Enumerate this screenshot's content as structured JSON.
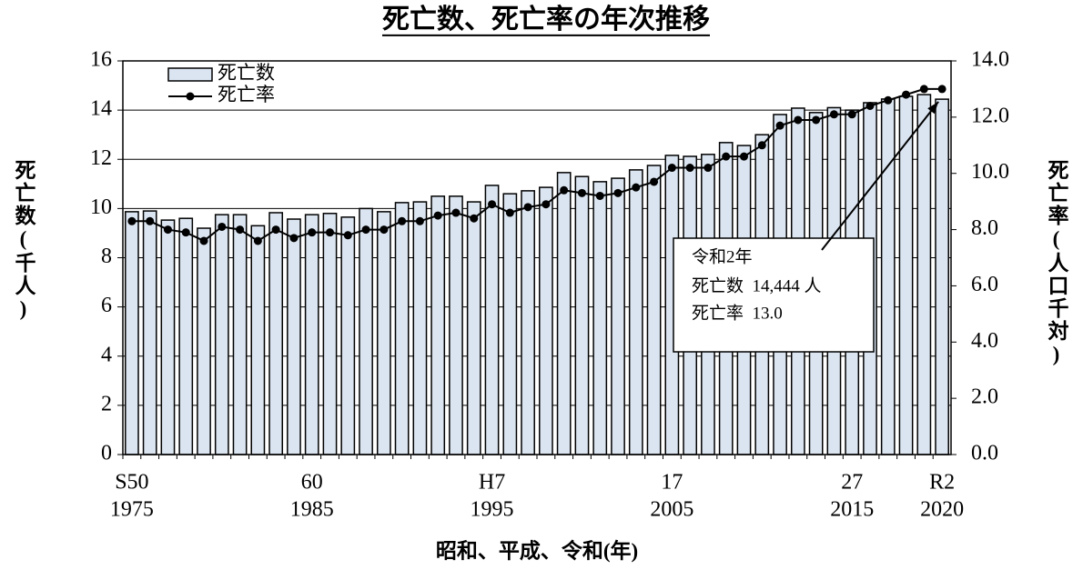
{
  "chart_data": {
    "type": "bar",
    "title": "死亡数、死亡率の年次推移",
    "x_label": "昭和、平成、令和(年)",
    "y_label": "死亡数(千人)",
    "y2_label": "死亡率(人口千対)",
    "categories": [
      "1975",
      null,
      null,
      null,
      null,
      null,
      null,
      null,
      null,
      null,
      "1985",
      null,
      null,
      null,
      null,
      null,
      null,
      null,
      null,
      null,
      "1995",
      null,
      null,
      null,
      null,
      null,
      null,
      null,
      null,
      null,
      "2005",
      null,
      null,
      null,
      null,
      null,
      null,
      null,
      null,
      null,
      "2015",
      null,
      null,
      null,
      null,
      "2020"
    ],
    "era_labels": [
      "S50",
      null,
      null,
      null,
      null,
      null,
      null,
      null,
      null,
      null,
      "60",
      null,
      null,
      null,
      null,
      null,
      null,
      null,
      null,
      null,
      "H7",
      null,
      null,
      null,
      null,
      null,
      null,
      null,
      null,
      null,
      "17",
      null,
      null,
      null,
      null,
      null,
      null,
      null,
      null,
      null,
      "27",
      null,
      null,
      null,
      null,
      "R2"
    ],
    "series": [
      {
        "name": "死亡数",
        "type": "bar",
        "color": "#dbe5f1",
        "values": [
          9.87,
          9.9,
          9.53,
          9.6,
          9.2,
          9.75,
          9.75,
          9.3,
          9.83,
          9.57,
          9.75,
          9.8,
          9.65,
          10.0,
          9.87,
          10.24,
          10.27,
          10.5,
          10.5,
          10.27,
          10.94,
          10.6,
          10.72,
          10.86,
          11.46,
          11.3,
          11.09,
          11.23,
          11.57,
          11.75,
          12.16,
          12.12,
          12.2,
          12.68,
          12.56,
          13.0,
          13.82,
          14.08,
          13.9,
          14.1,
          14.0,
          14.3,
          14.45,
          14.56,
          14.63,
          14.444
        ]
      },
      {
        "name": "死亡率",
        "type": "line",
        "color": "#000000",
        "axis": "y2",
        "values": [
          8.3,
          8.3,
          8.0,
          7.9,
          7.6,
          8.1,
          8.0,
          7.6,
          8.0,
          7.7,
          7.9,
          7.9,
          7.8,
          8.0,
          8.0,
          8.3,
          8.3,
          8.5,
          8.6,
          8.4,
          8.9,
          8.6,
          8.8,
          8.9,
          9.4,
          9.3,
          9.2,
          9.3,
          9.5,
          9.7,
          10.2,
          10.2,
          10.2,
          10.6,
          10.6,
          11.0,
          11.7,
          11.9,
          11.9,
          12.1,
          12.1,
          12.4,
          12.6,
          12.8,
          13.0,
          13.0
        ]
      }
    ],
    "ylim": [
      0,
      16
    ],
    "yticks": [
      0,
      2,
      4,
      6,
      8,
      10,
      12,
      14,
      16
    ],
    "y2lim": [
      0,
      14
    ],
    "y2ticks": [
      {
        "value": 0,
        "label": "0.0"
      },
      {
        "value": 2,
        "label": "2.0"
      },
      {
        "value": 4,
        "label": "4.0"
      },
      {
        "value": 6,
        "label": "6.0"
      },
      {
        "value": 8,
        "label": "8.0"
      },
      {
        "value": 10,
        "label": "10.0"
      },
      {
        "value": 12,
        "label": "12.0"
      },
      {
        "value": 14,
        "label": "14.0"
      }
    ],
    "grid": true,
    "legend": "top-left",
    "annotation": {
      "title": "令和2年",
      "lines": [
        "死亡数  14,444 人",
        "死亡率  13.0"
      ]
    }
  }
}
